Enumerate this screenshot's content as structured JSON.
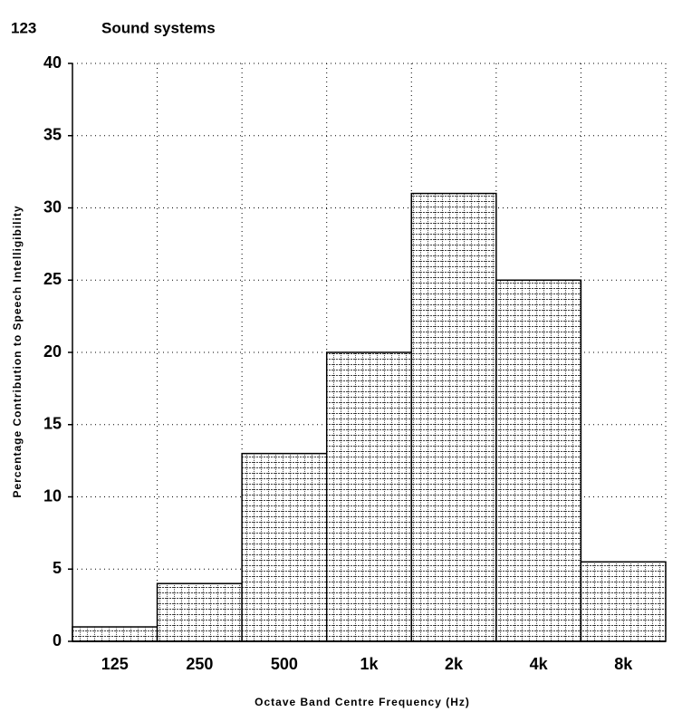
{
  "header": {
    "page_number": "123",
    "section": "Sound systems"
  },
  "chart_data": {
    "type": "bar",
    "y_label": "Percentage Contribution to Speech Intelligibility",
    "x_label": "Octave Band Centre Frequency (Hz)",
    "categories": [
      "125",
      "250",
      "500",
      "1k",
      "2k",
      "4k",
      "8k"
    ],
    "values": [
      1,
      4,
      13,
      20,
      31,
      25,
      5.5
    ],
    "color": "#000000",
    "ylim": [
      0,
      40
    ],
    "yticks": [
      0,
      5,
      10,
      15,
      20,
      25,
      30,
      35,
      40
    ],
    "grid": true
  }
}
